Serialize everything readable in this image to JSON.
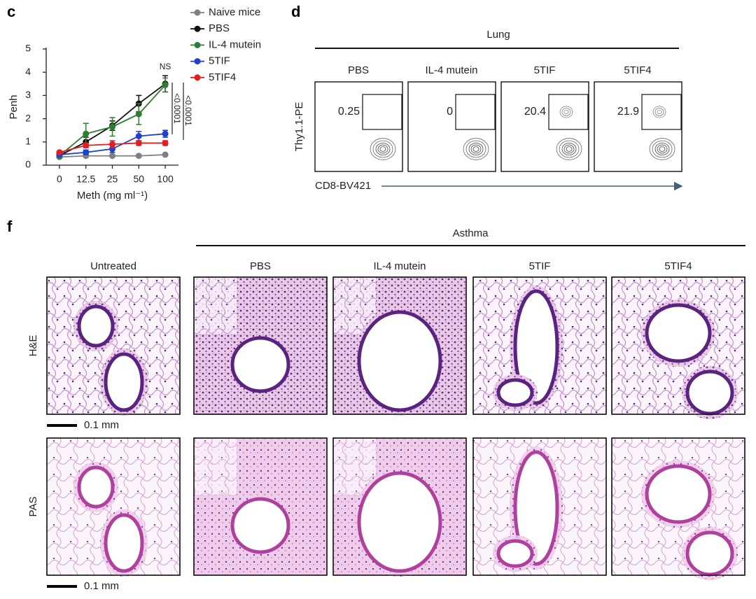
{
  "chart_data": {
    "type": "line",
    "label": "c",
    "categories": [
      "0",
      "12.5",
      "25",
      "50",
      "100"
    ],
    "xlabel": "Meth (mg ml⁻¹)",
    "ylabel": "Penh",
    "ylim": [
      0,
      5
    ],
    "yticks": [
      0,
      1,
      2,
      3,
      4,
      5
    ],
    "series": [
      {
        "name": "Naive mice",
        "color": "#808080",
        "values": [
          0.35,
          0.4,
          0.4,
          0.4,
          0.45
        ],
        "errors": [
          0.05,
          0.05,
          0.05,
          0.05,
          0.05
        ]
      },
      {
        "name": "PBS",
        "color": "#111111",
        "values": [
          0.4,
          1.0,
          1.7,
          2.65,
          3.5
        ],
        "errors": [
          0.05,
          0.2,
          0.2,
          0.35,
          0.35
        ]
      },
      {
        "name": "IL-4 mutein",
        "color": "#2e7d32",
        "values": [
          0.4,
          1.35,
          1.65,
          2.2,
          3.45
        ],
        "errors": [
          0.05,
          0.45,
          0.4,
          0.45,
          0.3
        ]
      },
      {
        "name": "5TIF",
        "color": "#1e3fd0",
        "values": [
          0.45,
          0.55,
          0.7,
          1.25,
          1.35
        ],
        "errors": [
          0.05,
          0.1,
          0.15,
          0.2,
          0.15
        ]
      },
      {
        "name": "5TIF4",
        "color": "#e02020",
        "values": [
          0.55,
          0.85,
          0.9,
          0.95,
          0.95
        ],
        "errors": [
          0.05,
          0.1,
          0.15,
          0.1,
          0.1
        ]
      }
    ],
    "annotations": [
      "NS",
      "<0.0001",
      "<0.0001"
    ]
  },
  "panel_d": {
    "label": "d",
    "title": "Lung",
    "columns": [
      "PBS",
      "IL-4 mutein",
      "5TIF",
      "5TIF4"
    ],
    "gate_values": [
      0.25,
      0,
      20.4,
      21.9
    ],
    "y_axis_label": "Thy1.1-PE",
    "x_axis_label": "CD8-BV421"
  },
  "panel_f": {
    "label": "f",
    "title": "Asthma",
    "columns": [
      "Untreated",
      "PBS",
      "IL-4 mutein",
      "5TIF",
      "5TIF4"
    ],
    "rows": [
      "H&E",
      "PAS"
    ],
    "scale_bars": [
      "0.1 mm",
      "0.1 mm"
    ]
  }
}
